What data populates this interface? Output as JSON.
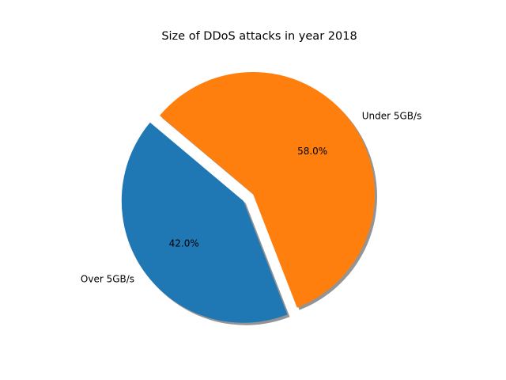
{
  "chart_data": {
    "type": "pie",
    "title": "Size of DDoS attacks in year 2018",
    "slices": [
      {
        "label": "Over 5GB/s",
        "value": 42.0,
        "pct_label": "42.0%",
        "color": "#1f77b4",
        "exploded": true
      },
      {
        "label": "Under 5GB/s",
        "value": 58.0,
        "pct_label": "58.0%",
        "color": "#ff7f0e",
        "exploded": false
      }
    ],
    "start_angle_deg": 140,
    "shadow": true
  }
}
